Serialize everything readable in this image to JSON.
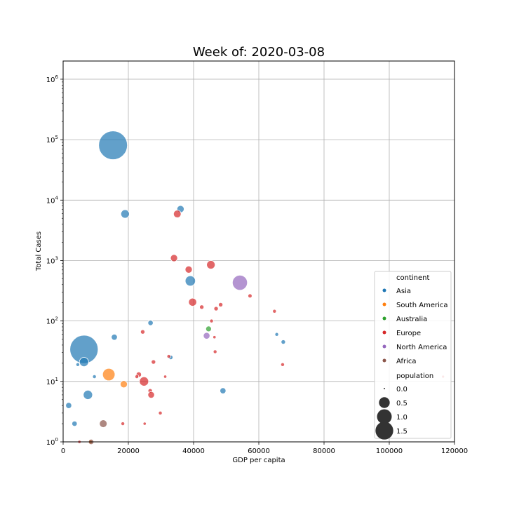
{
  "chart_data": {
    "type": "scatter",
    "title": "Week of: 2020-03-08",
    "xlabel": "GDP per capita",
    "ylabel": "Total Cases",
    "xlim": [
      0,
      120000
    ],
    "ylim": [
      1,
      2000000
    ],
    "yscale": "log",
    "grid": true,
    "xticks": [
      0,
      20000,
      40000,
      60000,
      80000,
      100000,
      120000
    ],
    "xtick_labels": [
      "0",
      "20000",
      "40000",
      "60000",
      "80000",
      "100000",
      "120000"
    ],
    "yticks": [
      1,
      10,
      100,
      1000,
      10000,
      100000,
      1000000
    ],
    "ytick_labels": [
      "10",
      "10",
      "10",
      "10",
      "10",
      "10",
      "10"
    ],
    "ytick_exponents": [
      "0",
      "1",
      "2",
      "3",
      "4",
      "5",
      "6"
    ],
    "legend": {
      "placement": "lower right",
      "hue_title": "continent",
      "size_title": "population",
      "continents": [
        {
          "name": "Asia",
          "color": "#1f77b4"
        },
        {
          "name": "South America",
          "color": "#ff7f0e"
        },
        {
          "name": "Australia",
          "color": "#2ca02c"
        },
        {
          "name": "Europe",
          "color": "#d62728"
        },
        {
          "name": "North America",
          "color": "#9467bd"
        },
        {
          "name": "Africa",
          "color": "#8c564b"
        }
      ],
      "sizes": [
        {
          "label": "0.0",
          "value": 0.0
        },
        {
          "label": "0.5",
          "value": 0.5
        },
        {
          "label": "1.0",
          "value": 1.0
        },
        {
          "label": "1.5",
          "value": 1.5
        }
      ]
    },
    "points": [
      {
        "continent": "Asia",
        "x": 15300,
        "y": 80800,
        "population": 1.4
      },
      {
        "continent": "Asia",
        "x": 6400,
        "y": 34,
        "population": 1.35
      },
      {
        "continent": "Asia",
        "x": 19000,
        "y": 5900,
        "population": 0.08
      },
      {
        "continent": "Asia",
        "x": 36000,
        "y": 7100,
        "population": 0.05
      },
      {
        "continent": "Asia",
        "x": 39000,
        "y": 460,
        "population": 0.13
      },
      {
        "continent": "Asia",
        "x": 6400,
        "y": 21,
        "population": 0.1
      },
      {
        "continent": "Asia",
        "x": 7600,
        "y": 6,
        "population": 0.1
      },
      {
        "continent": "Asia",
        "x": 15700,
        "y": 54,
        "population": 0.03
      },
      {
        "continent": "Asia",
        "x": 26800,
        "y": 93,
        "population": 0.02
      },
      {
        "continent": "Asia",
        "x": 1700,
        "y": 4,
        "population": 0.03
      },
      {
        "continent": "Asia",
        "x": 3500,
        "y": 2,
        "population": 0.02
      },
      {
        "continent": "Asia",
        "x": 49000,
        "y": 7,
        "population": 0.03
      },
      {
        "continent": "Asia",
        "x": 67500,
        "y": 45,
        "population": 0.01
      },
      {
        "continent": "Asia",
        "x": 65500,
        "y": 60,
        "population": 0.005
      },
      {
        "continent": "Asia",
        "x": 33000,
        "y": 25,
        "population": 0.01
      },
      {
        "continent": "Asia",
        "x": 4500,
        "y": 19,
        "population": 0.005
      },
      {
        "continent": "Asia",
        "x": 9600,
        "y": 12,
        "population": 0.005
      },
      {
        "continent": "South America",
        "x": 14000,
        "y": 13,
        "population": 0.21
      },
      {
        "continent": "South America",
        "x": 18600,
        "y": 9,
        "population": 0.05
      },
      {
        "continent": "South America",
        "x": 8300,
        "y": 1,
        "population": 0.01
      },
      {
        "continent": "Australia",
        "x": 44600,
        "y": 74,
        "population": 0.025
      },
      {
        "continent": "Europe",
        "x": 35000,
        "y": 5900,
        "population": 0.06
      },
      {
        "continent": "Europe",
        "x": 34000,
        "y": 1100,
        "population": 0.05
      },
      {
        "continent": "Europe",
        "x": 45300,
        "y": 850,
        "population": 0.08
      },
      {
        "continent": "Europe",
        "x": 38500,
        "y": 710,
        "population": 0.05
      },
      {
        "continent": "Europe",
        "x": 39700,
        "y": 205,
        "population": 0.07
      },
      {
        "continent": "Europe",
        "x": 42500,
        "y": 170,
        "population": 0.01
      },
      {
        "continent": "Europe",
        "x": 48300,
        "y": 186,
        "population": 0.01
      },
      {
        "continent": "Europe",
        "x": 46900,
        "y": 160,
        "population": 0.01
      },
      {
        "continent": "Europe",
        "x": 57300,
        "y": 260,
        "population": 0.008
      },
      {
        "continent": "Europe",
        "x": 64800,
        "y": 145,
        "population": 0.005
      },
      {
        "continent": "Europe",
        "x": 45500,
        "y": 100,
        "population": 0.005
      },
      {
        "continent": "Europe",
        "x": 24400,
        "y": 66,
        "population": 0.01
      },
      {
        "continent": "Europe",
        "x": 46400,
        "y": 54,
        "population": 0.002
      },
      {
        "continent": "Europe",
        "x": 46600,
        "y": 31,
        "population": 0.005
      },
      {
        "continent": "Europe",
        "x": 32400,
        "y": 26,
        "population": 0.005
      },
      {
        "continent": "Europe",
        "x": 67300,
        "y": 19,
        "population": 0.005
      },
      {
        "continent": "Europe",
        "x": 27700,
        "y": 21,
        "population": 0.01
      },
      {
        "continent": "Europe",
        "x": 23200,
        "y": 13,
        "population": 0.02
      },
      {
        "continent": "Europe",
        "x": 22600,
        "y": 12,
        "population": 0.005
      },
      {
        "continent": "Europe",
        "x": 31300,
        "y": 12,
        "population": 0.002
      },
      {
        "continent": "Europe",
        "x": 24800,
        "y": 10,
        "population": 0.1
      },
      {
        "continent": "Europe",
        "x": 26700,
        "y": 7,
        "population": 0.01
      },
      {
        "continent": "Europe",
        "x": 27000,
        "y": 6,
        "population": 0.04
      },
      {
        "continent": "Europe",
        "x": 29800,
        "y": 3,
        "population": 0.005
      },
      {
        "continent": "Europe",
        "x": 18300,
        "y": 2,
        "population": 0.005
      },
      {
        "continent": "Europe",
        "x": 25000,
        "y": 2,
        "population": 0.002
      },
      {
        "continent": "Europe",
        "x": 5000,
        "y": 1,
        "population": 0.002
      },
      {
        "continent": "North America",
        "x": 54200,
        "y": 430,
        "population": 0.33
      },
      {
        "continent": "North America",
        "x": 44000,
        "y": 57,
        "population": 0.04
      },
      {
        "continent": "Africa",
        "x": 12300,
        "y": 2,
        "population": 0.06
      },
      {
        "continent": "Africa",
        "x": 8600,
        "y": 1,
        "population": 0.02
      },
      {
        "continent": "Europe",
        "x": 116500,
        "y": 12,
        "population": 0.001
      }
    ]
  }
}
